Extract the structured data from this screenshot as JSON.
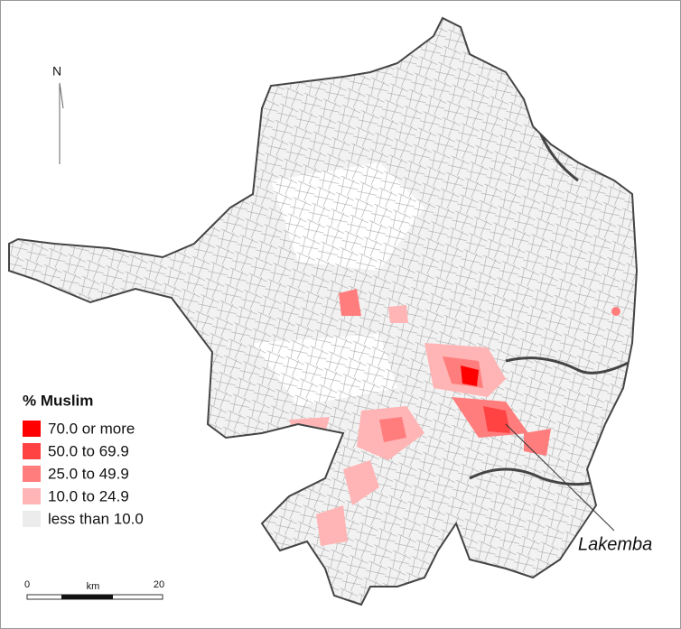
{
  "north_label": "N",
  "legend": {
    "title": "% Muslim",
    "items": [
      {
        "label": "70.0 or more",
        "color": "#ff0000"
      },
      {
        "label": "50.0 to 69.9",
        "color": "#ff4242"
      },
      {
        "label": "25.0 to 49.9",
        "color": "#ff7d7d"
      },
      {
        "label": "10.0 to 24.9",
        "color": "#ffb5b5"
      },
      {
        "label": "less than 10.0",
        "color": "#ececec"
      }
    ]
  },
  "annotation": "Lakemba",
  "scale_bar": {
    "start": 0,
    "unit": "km",
    "end": 20
  }
}
